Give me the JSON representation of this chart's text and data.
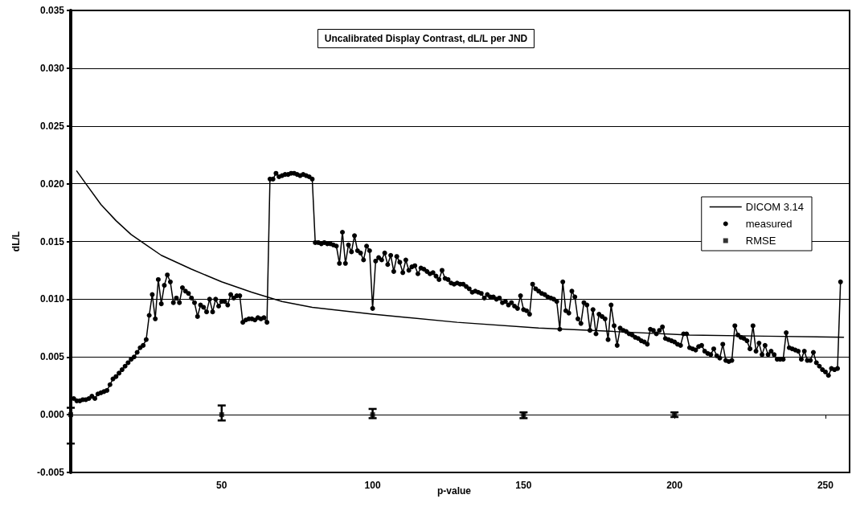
{
  "chart_data": {
    "type": "line",
    "title": "Uncalibrated Display Contrast, dL/L per JND",
    "xlabel": "p-value",
    "ylabel": "dL/L",
    "xlim": [
      0,
      258
    ],
    "xticks": [
      50,
      100,
      150,
      200,
      250
    ],
    "ylim": [
      -0.005,
      0.035
    ],
    "yticks": [
      {
        "value": -0.005,
        "label": "-0.005"
      },
      {
        "value": 0,
        "label": "0.000"
      },
      {
        "value": 0.005,
        "label": "0.005"
      },
      {
        "value": 0.01,
        "label": "0.010"
      },
      {
        "value": 0.015,
        "label": "0.015"
      },
      {
        "value": 0.02,
        "label": "0.020"
      },
      {
        "value": 0.025,
        "label": "0.025"
      },
      {
        "value": 0.03,
        "label": "0.030"
      },
      {
        "value": 0.035,
        "label": "0.035"
      }
    ],
    "grid": "y",
    "legend": "right",
    "line_style": "solid",
    "x": [
      1,
      2,
      3,
      4,
      5,
      6,
      7,
      8,
      9,
      10,
      11,
      12,
      13,
      14,
      15,
      16,
      17,
      18,
      19,
      20,
      21,
      22,
      23,
      24,
      25,
      26,
      27,
      28,
      29,
      30,
      31,
      32,
      33,
      34,
      35,
      36,
      37,
      38,
      39,
      40,
      41,
      42,
      43,
      44,
      45,
      46,
      47,
      48,
      49,
      50,
      51,
      52,
      53,
      54,
      55,
      56,
      57,
      58,
      59,
      60,
      61,
      62,
      63,
      64,
      65,
      66,
      67,
      68,
      69,
      70,
      71,
      72,
      73,
      74,
      75,
      76,
      77,
      78,
      79,
      80,
      81,
      82,
      83,
      84,
      85,
      86,
      87,
      88,
      89,
      90,
      91,
      92,
      93,
      94,
      95,
      96,
      97,
      98,
      99,
      100,
      101,
      102,
      103,
      104,
      105,
      106,
      107,
      108,
      109,
      110,
      111,
      112,
      113,
      114,
      115,
      116,
      117,
      118,
      119,
      120,
      121,
      122,
      123,
      124,
      125,
      126,
      127,
      128,
      129,
      130,
      131,
      132,
      133,
      134,
      135,
      136,
      137,
      138,
      139,
      140,
      141,
      142,
      143,
      144,
      145,
      146,
      147,
      148,
      149,
      150,
      151,
      152,
      153,
      154,
      155,
      156,
      157,
      158,
      159,
      160,
      161,
      162,
      163,
      164,
      165,
      166,
      167,
      168,
      169,
      170,
      171,
      172,
      173,
      174,
      175,
      176,
      177,
      178,
      179,
      180,
      181,
      182,
      183,
      184,
      185,
      186,
      187,
      188,
      189,
      190,
      191,
      192,
      193,
      194,
      195,
      196,
      197,
      198,
      199,
      200,
      201,
      202,
      203,
      204,
      205,
      206,
      207,
      208,
      209,
      210,
      211,
      212,
      213,
      214,
      215,
      216,
      217,
      218,
      219,
      220,
      221,
      222,
      223,
      224,
      225,
      226,
      227,
      228,
      229,
      230,
      231,
      232,
      233,
      234,
      235,
      236,
      237,
      238,
      239,
      240,
      241,
      242,
      243,
      244,
      245,
      246,
      247,
      248,
      249,
      250,
      251,
      252,
      253,
      254,
      255
    ],
    "series": [
      {
        "name": "DICOM 3.14",
        "color": "#000000",
        "marker": "none",
        "x": [
          2,
          5,
          10,
          15,
          20,
          25,
          30,
          40,
          50,
          60,
          70,
          80,
          100,
          128,
          155,
          180,
          205,
          230,
          256
        ],
        "values": [
          0.0211,
          0.02,
          0.0182,
          0.0168,
          0.0156,
          0.0147,
          0.0138,
          0.0126,
          0.0115,
          0.0106,
          0.0098,
          0.0093,
          0.0087,
          0.008,
          0.0075,
          0.0072,
          0.0069,
          0.0068,
          0.0067
        ]
      },
      {
        "name": "measured",
        "color": "#000000",
        "marker": "circle",
        "values": [
          0.0014,
          0.0012,
          0.0012,
          0.0013,
          0.0013,
          0.0014,
          0.0016,
          0.0014,
          0.0018,
          0.0019,
          0.002,
          0.0021,
          0.0026,
          0.0031,
          0.0033,
          0.0036,
          0.0039,
          0.0042,
          0.0045,
          0.0048,
          0.005,
          0.0054,
          0.0058,
          0.006,
          0.0065,
          0.0086,
          0.0104,
          0.0083,
          0.0117,
          0.0096,
          0.0112,
          0.0121,
          0.0115,
          0.0097,
          0.0101,
          0.0097,
          0.011,
          0.0107,
          0.0105,
          0.0101,
          0.0097,
          0.0085,
          0.0095,
          0.0093,
          0.0089,
          0.01,
          0.0089,
          0.01,
          0.0094,
          0.0098,
          0.0098,
          0.0095,
          0.0104,
          0.0101,
          0.0103,
          0.0103,
          0.008,
          0.0082,
          0.0083,
          0.0083,
          0.0082,
          0.0084,
          0.0083,
          0.0084,
          0.008,
          0.0204,
          0.0204,
          0.0209,
          0.0206,
          0.0207,
          0.0208,
          0.0208,
          0.0209,
          0.0209,
          0.0208,
          0.0207,
          0.0208,
          0.0207,
          0.0206,
          0.0204,
          0.0149,
          0.0149,
          0.0148,
          0.0149,
          0.0148,
          0.0148,
          0.0147,
          0.0146,
          0.0131,
          0.0158,
          0.0131,
          0.0147,
          0.0141,
          0.0155,
          0.0142,
          0.014,
          0.0134,
          0.0146,
          0.0142,
          0.0092,
          0.0133,
          0.0136,
          0.0134,
          0.014,
          0.013,
          0.0138,
          0.0124,
          0.0137,
          0.0132,
          0.0123,
          0.0134,
          0.0125,
          0.0128,
          0.0129,
          0.0122,
          0.0127,
          0.0126,
          0.0124,
          0.0122,
          0.0123,
          0.012,
          0.0117,
          0.0125,
          0.0118,
          0.0117,
          0.0114,
          0.0113,
          0.0114,
          0.0113,
          0.0113,
          0.0111,
          0.0109,
          0.0106,
          0.0107,
          0.0106,
          0.0105,
          0.0101,
          0.0104,
          0.0102,
          0.0102,
          0.01,
          0.0101,
          0.0097,
          0.0098,
          0.0095,
          0.0097,
          0.0094,
          0.0092,
          0.0103,
          0.0091,
          0.009,
          0.0087,
          0.0113,
          0.0109,
          0.0107,
          0.0105,
          0.0104,
          0.0102,
          0.0101,
          0.01,
          0.0098,
          0.0074,
          0.0115,
          0.009,
          0.0088,
          0.0107,
          0.0102,
          0.0083,
          0.0079,
          0.0097,
          0.0095,
          0.0073,
          0.0091,
          0.007,
          0.0087,
          0.0085,
          0.0083,
          0.0065,
          0.0095,
          0.0077,
          0.006,
          0.0075,
          0.0073,
          0.0072,
          0.007,
          0.0069,
          0.0067,
          0.0066,
          0.0064,
          0.0063,
          0.0061,
          0.0074,
          0.0073,
          0.007,
          0.0073,
          0.0076,
          0.0066,
          0.0065,
          0.0064,
          0.0063,
          0.0061,
          0.006,
          0.007,
          0.007,
          0.0058,
          0.0057,
          0.0056,
          0.0059,
          0.006,
          0.0055,
          0.0053,
          0.0052,
          0.0057,
          0.0051,
          0.0049,
          0.0061,
          0.0047,
          0.0046,
          0.0047,
          0.0077,
          0.0069,
          0.0067,
          0.0066,
          0.0064,
          0.0057,
          0.0077,
          0.0055,
          0.0062,
          0.0052,
          0.006,
          0.0052,
          0.0055,
          0.0052,
          0.0048,
          0.0048,
          0.0048,
          0.0071,
          0.0058,
          0.0057,
          0.0056,
          0.0055,
          0.0048,
          0.0055,
          0.0047,
          0.0047,
          0.0054,
          0.0045,
          0.0042,
          0.0039,
          0.0037,
          0.0034,
          0.004,
          0.0039,
          0.004,
          0.0115
        ]
      },
      {
        "name": "RMSE",
        "type": "scatter",
        "color": "#000000",
        "marker": "square",
        "x": [
          0,
          50,
          100,
          150,
          200
        ],
        "values": [
          0,
          0,
          0,
          0,
          0
        ],
        "errors": [
          [
            -0.0025,
            0.0006
          ],
          [
            -0.0005,
            0.0008
          ],
          [
            -0.0003,
            0.0005
          ],
          [
            -0.0003,
            0.0002
          ],
          [
            -0.0002,
            0.0002
          ]
        ]
      }
    ]
  }
}
